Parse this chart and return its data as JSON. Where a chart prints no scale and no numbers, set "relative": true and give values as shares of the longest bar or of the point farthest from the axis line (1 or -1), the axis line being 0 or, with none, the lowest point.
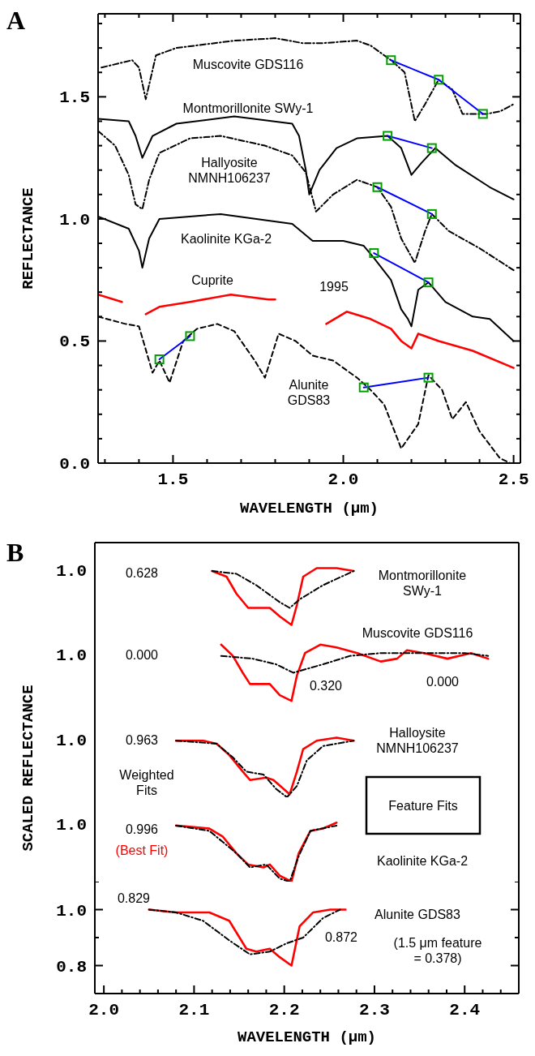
{
  "chart_data": [
    {
      "type": "line",
      "title": "A",
      "xlabel": "WAVELENGTH (μm)",
      "ylabel": "REFLECTANCE",
      "xlim": [
        1.28,
        2.52
      ],
      "ylim": [
        0,
        1.84
      ],
      "xticks": [
        {
          "value": 1.3,
          "label": null
        },
        {
          "value": 1.4,
          "label": null
        },
        1.5,
        {
          "value": 1.6,
          "label": null
        },
        {
          "value": 1.7,
          "label": null
        },
        {
          "value": 1.8,
          "label": null
        },
        {
          "value": 1.9,
          "label": null
        },
        {
          "value": 2,
          "label": "2.0"
        },
        {
          "value": 2.1,
          "label": null
        },
        {
          "value": 2.2,
          "label": null
        },
        {
          "value": 2.3,
          "label": null
        },
        {
          "value": 2.4,
          "label": null
        },
        2.5
      ],
      "yticks": [
        {
          "value": 0,
          "label": "0.0"
        },
        {
          "value": 0.1,
          "label": null
        },
        {
          "value": 0.2,
          "label": null
        },
        {
          "value": 0.3,
          "label": null
        },
        {
          "value": 0.4,
          "label": null
        },
        0.5,
        {
          "value": 0.6,
          "label": null
        },
        {
          "value": 0.7,
          "label": null
        },
        {
          "value": 0.8,
          "label": null
        },
        {
          "value": 0.9,
          "label": null
        },
        {
          "value": 1,
          "label": "1.0"
        },
        {
          "value": 1.1,
          "label": null
        },
        {
          "value": 1.2,
          "label": null
        },
        {
          "value": 1.3,
          "label": null
        },
        {
          "value": 1.4,
          "label": null
        },
        1.5,
        {
          "value": 1.6,
          "label": null
        },
        {
          "value": 1.7,
          "label": null
        },
        {
          "value": 1.8,
          "label": null
        }
      ],
      "series": [
        {
          "color": "#000000",
          "line_style": "dashdot",
          "x": [
            1.29,
            1.38,
            1.4,
            1.42,
            1.45,
            1.51,
            1.68,
            1.8,
            1.88,
            1.94,
            2.04,
            2.08,
            2.14,
            2.18,
            2.21,
            2.24,
            2.28,
            2.32,
            2.35,
            2.42,
            2.46,
            2.5
          ],
          "values": [
            1.62,
            1.65,
            1.62,
            1.49,
            1.67,
            1.7,
            1.73,
            1.74,
            1.72,
            1.72,
            1.73,
            1.71,
            1.65,
            1.6,
            1.4,
            1.47,
            1.57,
            1.53,
            1.43,
            1.43,
            1.44,
            1.47
          ]
        },
        {
          "color": "#000000",
          "line_style": "solid",
          "x": [
            1.28,
            1.37,
            1.39,
            1.41,
            1.44,
            1.51,
            1.68,
            1.85,
            1.87,
            1.89,
            1.9,
            1.93,
            1.98,
            2.04,
            2.13,
            2.17,
            2.2,
            2.23,
            2.27,
            2.33,
            2.43,
            2.5
          ],
          "values": [
            1.41,
            1.4,
            1.34,
            1.25,
            1.34,
            1.39,
            1.42,
            1.39,
            1.34,
            1.2,
            1.1,
            1.2,
            1.29,
            1.33,
            1.34,
            1.29,
            1.18,
            1.23,
            1.29,
            1.22,
            1.13,
            1.08
          ]
        },
        {
          "color": "#000000",
          "line_style": "dashdot",
          "x": [
            1.28,
            1.33,
            1.37,
            1.39,
            1.41,
            1.43,
            1.46,
            1.55,
            1.64,
            1.77,
            1.85,
            1.89,
            1.92,
            1.97,
            2.04,
            2.1,
            2.14,
            2.17,
            2.21,
            2.24,
            2.26,
            2.31,
            2.4,
            2.5
          ],
          "values": [
            1.36,
            1.3,
            1.18,
            1.06,
            1.04,
            1.16,
            1.27,
            1.33,
            1.34,
            1.3,
            1.26,
            1.19,
            1.03,
            1.1,
            1.16,
            1.13,
            1.05,
            0.92,
            0.82,
            0.95,
            1.02,
            0.95,
            0.88,
            0.79
          ]
        },
        {
          "color": "#000000",
          "line_style": "solid",
          "x": [
            1.28,
            1.37,
            1.4,
            1.41,
            1.43,
            1.46,
            1.64,
            1.85,
            1.91,
            2.0,
            2.06,
            2.09,
            2.14,
            2.17,
            2.19,
            2.2,
            2.22,
            2.25,
            2.3,
            2.38,
            2.43,
            2.5
          ],
          "values": [
            1.01,
            0.96,
            0.87,
            0.8,
            0.92,
            1.0,
            1.02,
            0.98,
            0.91,
            0.91,
            0.89,
            0.84,
            0.75,
            0.63,
            0.59,
            0.56,
            0.71,
            0.74,
            0.66,
            0.6,
            0.59,
            0.5
          ]
        },
        {
          "color": "#ff0000",
          "line_style": "solid",
          "x": [
            1.28,
            1.35,
            1.385,
            1.42,
            1.46,
            1.55,
            1.67,
            1.78,
            1.8,
            1.875,
            1.95,
            2.01,
            2.08,
            2.14,
            2.17,
            2.2,
            2.22,
            2.28,
            2.38,
            2.5
          ],
          "values": [
            0.69,
            0.66,
            null,
            0.61,
            0.64,
            0.66,
            0.69,
            0.67,
            0.67,
            null,
            0.57,
            0.62,
            0.59,
            0.55,
            0.5,
            0.47,
            0.53,
            0.5,
            0.46,
            0.39
          ]
        },
        {
          "color": "#000000",
          "line_style": "dashed",
          "x": [
            1.28,
            1.36,
            1.4,
            1.44,
            1.46,
            1.49,
            1.53,
            1.57,
            1.63,
            1.68,
            1.74,
            1.77,
            1.81,
            1.86,
            1.91,
            1.97,
            2.04,
            2.08,
            2.12,
            2.17,
            2.22,
            2.25,
            2.29,
            2.32,
            2.36,
            2.4,
            2.46,
            2.49
          ],
          "values": [
            0.6,
            0.57,
            0.56,
            0.37,
            0.42,
            0.33,
            0.5,
            0.55,
            0.57,
            0.54,
            0.42,
            0.35,
            0.53,
            0.5,
            0.44,
            0.42,
            0.35,
            0.3,
            0.24,
            0.06,
            0.16,
            0.36,
            0.3,
            0.18,
            0.25,
            0.13,
            0.02,
            0.0
          ]
        },
        {
          "color": "#0000ff",
          "line_style": "solid",
          "x": [
            2.14,
            2.28,
            2.41
          ],
          "values": [
            1.65,
            1.57,
            1.43
          ]
        },
        {
          "color": "#0000ff",
          "line_style": "solid",
          "x": [
            2.13,
            2.26
          ],
          "values": [
            1.34,
            1.29
          ]
        },
        {
          "color": "#0000ff",
          "line_style": "solid",
          "x": [
            2.1,
            2.26
          ],
          "values": [
            1.13,
            1.02
          ]
        },
        {
          "color": "#0000ff",
          "line_style": "solid",
          "x": [
            2.09,
            2.25
          ],
          "values": [
            0.86,
            0.74
          ]
        },
        {
          "color": "#0000ff",
          "line_style": "solid",
          "x": [
            1.46,
            1.55
          ],
          "values": [
            0.425,
            0.52
          ]
        },
        {
          "color": "#0000ff",
          "line_style": "solid",
          "x": [
            2.06,
            2.25
          ],
          "values": [
            0.31,
            0.35
          ]
        },
        {
          "type": "scatter",
          "marker": "square",
          "color": "#00a000",
          "x": [
            2.14,
            2.28,
            2.41,
            2.13,
            2.26,
            2.1,
            2.26,
            2.09,
            2.25,
            1.46,
            1.55,
            2.06,
            2.25
          ],
          "values": [
            1.65,
            1.57,
            1.43,
            1.34,
            1.29,
            1.13,
            1.02,
            0.86,
            0.74,
            0.425,
            0.52,
            0.31,
            0.35
          ]
        }
      ],
      "annotations": [
        "Muscovite GDS116",
        "Montmorillonite SWy-1",
        "Hallyosite\nNMNH106237",
        "Kaolinite KGa-2",
        "Cuprite",
        "1995",
        "Alunite\nGDS83"
      ]
    },
    {
      "type": "line",
      "title": "B",
      "relative": true,
      "xlim": [
        1.99,
        2.46
      ],
      "series": [
        {
          "color": "#ff0000",
          "line_style": "solid",
          "x": [
            2.12,
            2.136,
            2.147,
            2.16,
            2.173,
            2.184,
            2.195,
            2.208,
            2.214,
            2.221,
            2.236,
            2.258,
            2.277
          ],
          "values": [
            0.95,
            0.85,
            0.55,
            0.3,
            0.3,
            0.3,
            0.15,
            0,
            0.35,
            0.85,
            1,
            1,
            0.95
          ]
        },
        {
          "color": "#000000",
          "line_style": "dashdot",
          "x": [
            2.12,
            2.147,
            2.169,
            2.195,
            2.206,
            2.217,
            2.243,
            2.277
          ],
          "values": [
            0.95,
            0.9,
            0.7,
            0.4,
            0.3,
            0.45,
            0.7,
            0.95
          ]
        }
      ],
      "annotations": [
        "0.628",
        "Montmorillonite\nSWy-1",
        "1.0"
      ]
    },
    {
      "type": "line",
      "relative": true,
      "xlim": [
        1.99,
        2.46
      ],
      "series": [
        {
          "color": "#ff0000",
          "line_style": "solid",
          "x": [
            2.13,
            2.143,
            2.154,
            2.162,
            2.184,
            2.195,
            2.208,
            2.214,
            2.223,
            2.24,
            2.258,
            2.281,
            2.307,
            2.325,
            2.336,
            2.355,
            2.381,
            2.407,
            2.426
          ],
          "values": [
            1,
            0.8,
            0.5,
            0.3,
            0.3,
            0.1,
            0,
            0.45,
            0.85,
            1,
            0.95,
            0.85,
            0.7,
            0.75,
            0.9,
            0.85,
            0.75,
            0.85,
            0.75
          ]
        },
        {
          "color": "#000000",
          "line_style": "dashdot",
          "x": [
            2.13,
            2.165,
            2.191,
            2.21,
            2.243,
            2.273,
            2.307,
            2.336,
            2.366,
            2.4,
            2.426
          ],
          "values": [
            0.8,
            0.75,
            0.65,
            0.5,
            0.65,
            0.8,
            0.85,
            0.85,
            0.85,
            0.85,
            0.8
          ]
        }
      ],
      "annotations": [
        "0.000",
        "Muscovite GDS116",
        "0.320",
        "0.000",
        "1.0"
      ]
    },
    {
      "type": "line",
      "relative": true,
      "ylabel": "SCALED REFLECTANCE",
      "xlim": [
        1.99,
        2.46
      ],
      "series": [
        {
          "color": "#ff0000",
          "line_style": "solid",
          "x": [
            2.08,
            2.11,
            2.125,
            2.139,
            2.154,
            2.162,
            2.18,
            2.188,
            2.206,
            2.214,
            2.221,
            2.236,
            2.258,
            2.277
          ],
          "values": [
            0.95,
            0.95,
            0.9,
            0.71,
            0.43,
            0.29,
            0.33,
            0.29,
            0.05,
            0.43,
            0.81,
            0.95,
            1,
            0.95
          ]
        },
        {
          "color": "#000000",
          "line_style": "dashdot",
          "x": [
            2.08,
            2.125,
            2.143,
            2.158,
            2.177,
            2.191,
            2.203,
            2.214,
            2.225,
            2.243,
            2.277
          ],
          "values": [
            0.95,
            0.9,
            0.67,
            0.43,
            0.38,
            0.14,
            0,
            0.19,
            0.62,
            0.86,
            0.95
          ]
        }
      ],
      "annotations": [
        "0.963",
        "Halloysite\nNMNH106237",
        "Weighted\nFits",
        "1.0"
      ]
    },
    {
      "type": "line",
      "relative": true,
      "xlim": [
        1.99,
        2.46
      ],
      "series": [
        {
          "color": "#ff0000",
          "line_style": "solid",
          "x": [
            2.08,
            2.117,
            2.132,
            2.147,
            2.16,
            2.177,
            2.184,
            2.195,
            2.208,
            2.216,
            2.229,
            2.243,
            2.258
          ],
          "values": [
            0.95,
            0.9,
            0.76,
            0.48,
            0.29,
            0.24,
            0.29,
            0.1,
            0,
            0.48,
            0.86,
            0.9,
            1
          ]
        },
        {
          "color": "#000000",
          "line_style": "dashdot",
          "x": [
            2.08,
            2.117,
            2.147,
            2.162,
            2.18,
            2.195,
            2.206,
            2.216,
            2.229,
            2.258
          ],
          "values": [
            0.95,
            0.86,
            0.48,
            0.24,
            0.29,
            0.05,
            0,
            0.43,
            0.86,
            0.95
          ]
        }
      ],
      "annotations": [
        "Feature Fits",
        "0.996",
        "(Best Fit)",
        "Kaolinite KGa-2",
        "1.0"
      ]
    },
    {
      "type": "line",
      "xlabel": "WAVELENGTH (μm)",
      "xlim": [
        1.99,
        2.46
      ],
      "ylim": [
        0.7,
        1.1
      ],
      "xticks": [
        {
          "value": 2,
          "label": "2.0"
        },
        {
          "value": 2.02,
          "label": null
        },
        {
          "value": 2.04,
          "label": null
        },
        {
          "value": 2.06,
          "label": null
        },
        {
          "value": 2.08,
          "label": null
        },
        2.1,
        {
          "value": 2.12,
          "label": null
        },
        {
          "value": 2.14,
          "label": null
        },
        {
          "value": 2.16,
          "label": null
        },
        {
          "value": 2.18,
          "label": null
        },
        2.2,
        {
          "value": 2.22,
          "label": null
        },
        {
          "value": 2.24,
          "label": null
        },
        {
          "value": 2.26,
          "label": null
        },
        {
          "value": 2.28,
          "label": null
        },
        2.3,
        {
          "value": 2.32,
          "label": null
        },
        {
          "value": 2.34,
          "label": null
        },
        {
          "value": 2.36,
          "label": null
        },
        {
          "value": 2.38,
          "label": null
        },
        2.4,
        {
          "value": 2.42,
          "label": null
        },
        {
          "value": 2.44,
          "label": null
        }
      ],
      "yticks": [
        0.8,
        {
          "value": 0.9,
          "label": null
        },
        {
          "value": 1,
          "label": "1.0"
        },
        {
          "value": 1.1,
          "label": null
        }
      ],
      "series": [
        {
          "color": "#ff0000",
          "line_style": "solid",
          "x": [
            2.05,
            2.08,
            2.117,
            2.139,
            2.158,
            2.169,
            2.184,
            2.195,
            2.208,
            2.217,
            2.232,
            2.251,
            2.268
          ],
          "values": [
            1.0,
            0.99,
            0.99,
            0.96,
            0.86,
            0.85,
            0.86,
            0.83,
            0.8,
            0.94,
            0.99,
            1.0,
            1.0
          ]
        },
        {
          "color": "#000000",
          "line_style": "dashdot",
          "x": [
            2.05,
            2.08,
            2.11,
            2.139,
            2.162,
            2.184,
            2.203,
            2.221,
            2.243,
            2.262
          ],
          "values": [
            1.0,
            0.99,
            0.96,
            0.89,
            0.84,
            0.85,
            0.88,
            0.9,
            0.97,
            1.0
          ]
        }
      ],
      "annotations": [
        "0.829",
        "Alunite GDS83",
        "0.872",
        "(1.5 μm feature\n= 0.378)"
      ]
    }
  ]
}
